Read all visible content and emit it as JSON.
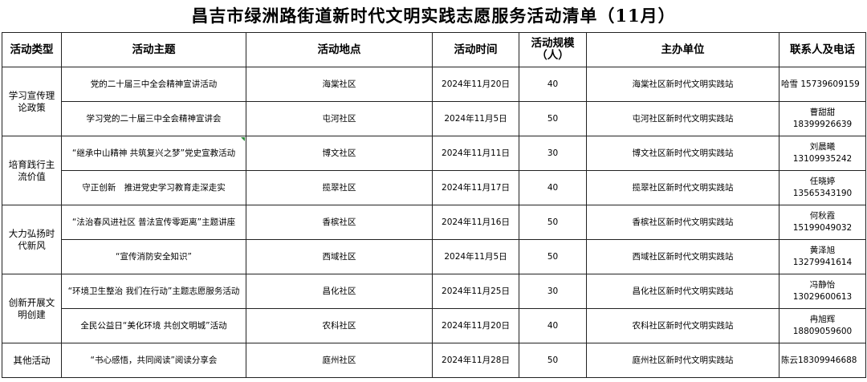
{
  "title": "昌吉市绿洲路街道新时代文明实践志愿服务活动清单（11月）",
  "headers": [
    "活动类型",
    "活动主题",
    "活动地点",
    "活动时间",
    "活动规模（人）",
    "主办单位",
    "联系人及电话"
  ],
  "groups": [
    {
      "type": "学习宣传理论政策",
      "rows": [
        {
          "theme": "党的二十届三中全会精神宣讲活动",
          "place": "海棠社区",
          "time": "2024年11月20日",
          "scale": "40",
          "host": "海棠社区新时代文明实践站",
          "contact_name": "哈雪",
          "contact_phone": "15739609159"
        },
        {
          "theme": "学习党的二十届三中全会精神宣讲会",
          "place": "屯河社区",
          "time": "2024年11月5日",
          "scale": "50",
          "host": "屯河社区新时代文明实践站",
          "contact_name": "曹甜甜",
          "contact_phone": "18399926639"
        }
      ]
    },
    {
      "type": "培育践行主流价值",
      "rows": [
        {
          "theme": "“继承中山精神 共筑复兴之梦”党史宣教活动",
          "place": "博文社区",
          "time": "2024年11月11日",
          "scale": "30",
          "host": "博文社区新时代文明实践站",
          "contact_name": "刘晨曦",
          "contact_phone": "13109935242"
        },
        {
          "theme": "守正创新　推进党史学习教育走深走实",
          "place": "揽翠社区",
          "time": "2024年11月17日",
          "scale": "40",
          "host": "揽翠社区新时代文明实践站",
          "contact_name": "任晓婷",
          "contact_phone": "13565343190"
        }
      ]
    },
    {
      "type": "大力弘扬时代新风",
      "rows": [
        {
          "theme": "“法治春风进社区 普法宣传零距离”主题讲座",
          "place": "香槟社区",
          "time": "2024年11月16日",
          "scale": "50",
          "host": "香槟社区新时代文明实践站",
          "contact_name": "何秋霞",
          "contact_phone": "15199049032"
        },
        {
          "theme": "“宣传消防安全知识”",
          "place": "西域社区",
          "time": "2024年11月5日",
          "scale": "50",
          "host": "西域社区新时代文明实践站",
          "contact_name": "黄泽旭",
          "contact_phone": "13279941614"
        }
      ]
    },
    {
      "type": "创新开展文明创建",
      "rows": [
        {
          "theme": "“环境卫生整治 我们在行动”主题志愿服务活动",
          "place": "昌化社区",
          "time": "2024年11月25日",
          "scale": "30",
          "host": "昌化社区新时代文明实践站",
          "contact_name": "冯静怡",
          "contact_phone": "13029600613"
        },
        {
          "theme": "全民公益日“美化环境 共创文明城”活动",
          "place": "农科社区",
          "time": "2024年11月20日",
          "scale": "40",
          "host": "农科社区新时代文明实践站",
          "contact_name": "冉旭辉",
          "contact_phone": "18809059600"
        }
      ]
    },
    {
      "type": "其他活动",
      "rows": [
        {
          "theme": "“书心感悟，共同阅读”阅读分享会",
          "place": "庭州社区",
          "time": "2024年11月28日",
          "scale": "50",
          "host": "庭州社区新时代文明实践站",
          "contact_name": "陈云",
          "contact_phone": "18309946688"
        }
      ]
    }
  ]
}
